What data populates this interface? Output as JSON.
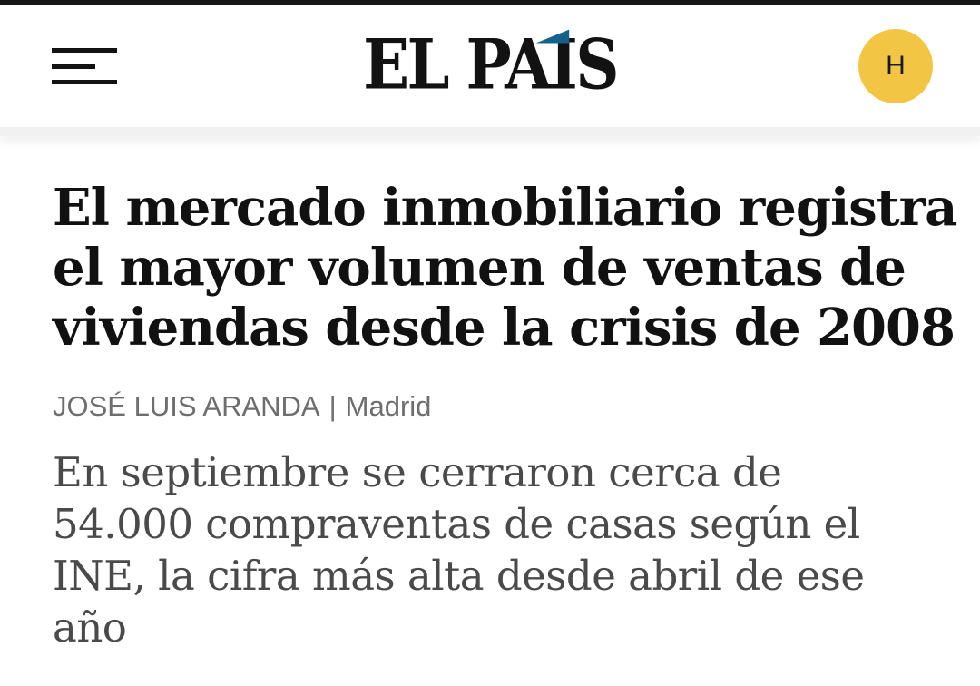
{
  "header": {
    "brand": {
      "full": "EL PAÍS",
      "part_before_i": "EL PA",
      "part_i": "I",
      "part_after_i": "S",
      "accent_color": "#15618c"
    },
    "avatar": {
      "initial": "H",
      "background_color": "#f2c644"
    }
  },
  "article": {
    "headline": "El mercado inmobiliario registra el mayor volumen de ventas de viviendas desde la crisis de 2008",
    "headline_lines": [
      "El mercado inmobiliario registra",
      "el mayor volumen de ventas de",
      "viviendas desde la crisis de 2008"
    ],
    "byline": {
      "author": "JOSÉ LUIS ARANDA",
      "separator": "|",
      "location": "Madrid"
    },
    "subtitle": "En septiembre se cerraron cerca de 54.000 compraventas de casas según el INE, la cifra más alta desde abril de ese año",
    "subtitle_lines": [
      "En septiembre se cerraron cerca de",
      "54.000 compraventas de casas según el",
      "INE, la cifra más alta desde abril de ese",
      "año"
    ]
  }
}
